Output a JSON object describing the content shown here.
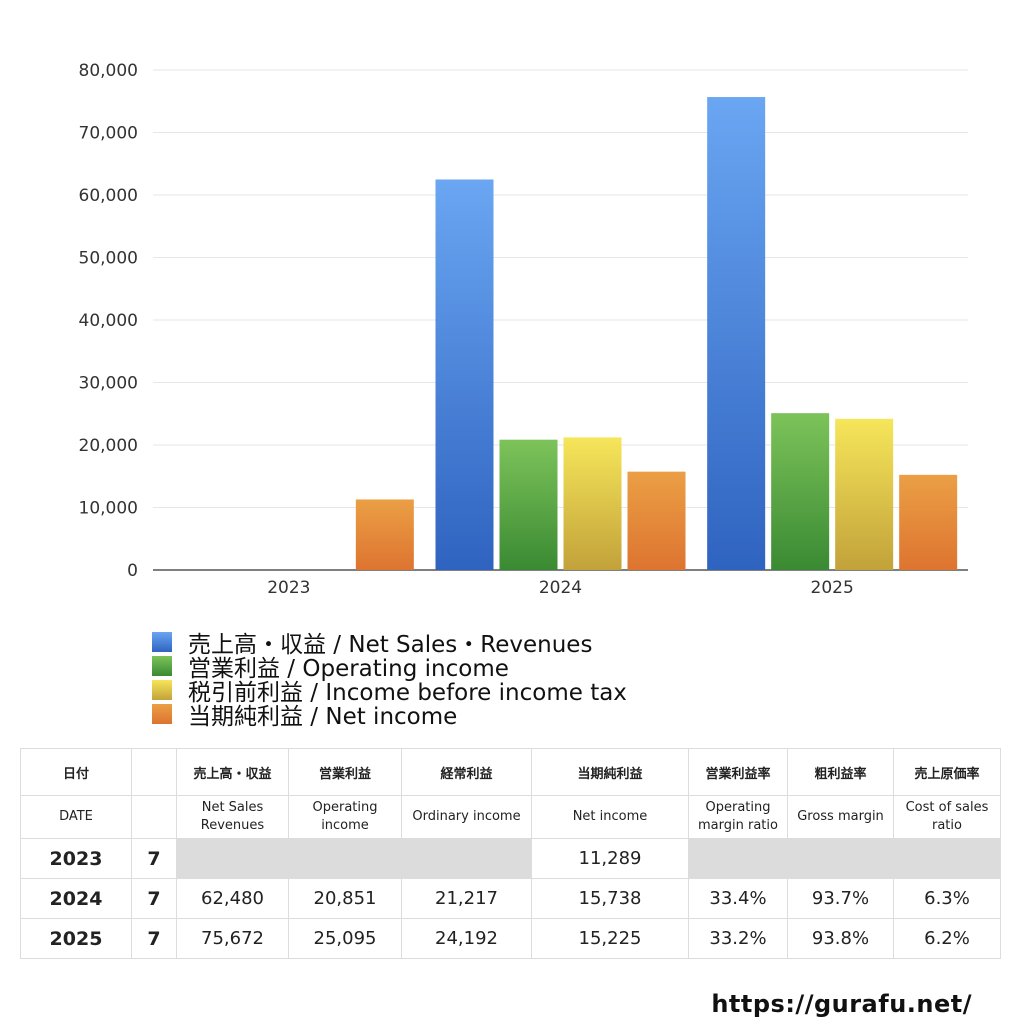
{
  "chart_data": {
    "type": "bar",
    "categories": [
      "2023",
      "2024",
      "2025"
    ],
    "series": [
      {
        "name": "売上高・収益 / Net Sales・Revenues",
        "color_top": "#6aa6f2",
        "color_bottom": "#2f63c0",
        "values": [
          null,
          62480,
          75672
        ]
      },
      {
        "name": "営業利益 / Operating income",
        "color_top": "#7dc35a",
        "color_bottom": "#3a8a33",
        "values": [
          null,
          20851,
          25095
        ]
      },
      {
        "name": "税引前利益 / Income before income tax",
        "color_top": "#f6e65a",
        "color_bottom": "#c2a23a",
        "values": [
          null,
          21217,
          24192
        ]
      },
      {
        "name": "当期純利益 / Net income",
        "color_top": "#eb9f45",
        "color_bottom": "#dd7430",
        "values": [
          11289,
          15738,
          15225
        ]
      }
    ],
    "ylim": [
      0,
      80000
    ],
    "yticks": [
      0,
      10000,
      20000,
      30000,
      40000,
      50000,
      60000,
      70000,
      80000
    ],
    "ytick_labels": [
      "0",
      "10,000",
      "20,000",
      "30,000",
      "40,000",
      "50,000",
      "60,000",
      "70,000",
      "80,000"
    ],
    "grid": true,
    "legend_position": "bottom-left"
  },
  "table": {
    "header_jp": [
      "日付",
      "",
      "売上高・収益",
      "営業利益",
      "経常利益",
      "当期純利益",
      "営業利益率",
      "粗利益率",
      "売上原価率"
    ],
    "header_en": [
      "DATE",
      "",
      "Net Sales\nRevenues",
      "Operating\nincome",
      "Ordinary income",
      "Net income",
      "Operating\nmargin ratio",
      "Gross margin",
      "Cost of sales\nratio"
    ],
    "rows": [
      {
        "year": "2023",
        "month": "7",
        "cells": [
          "",
          "",
          "",
          "11,289",
          "",
          "",
          ""
        ]
      },
      {
        "year": "2024",
        "month": "7",
        "cells": [
          "62,480",
          "20,851",
          "21,217",
          "15,738",
          "33.4%",
          "93.7%",
          "6.3%"
        ]
      },
      {
        "year": "2025",
        "month": "7",
        "cells": [
          "75,672",
          "25,095",
          "24,192",
          "15,225",
          "33.2%",
          "93.8%",
          "6.2%"
        ]
      }
    ]
  },
  "footer": {
    "url": "https://gurafu.net/"
  }
}
